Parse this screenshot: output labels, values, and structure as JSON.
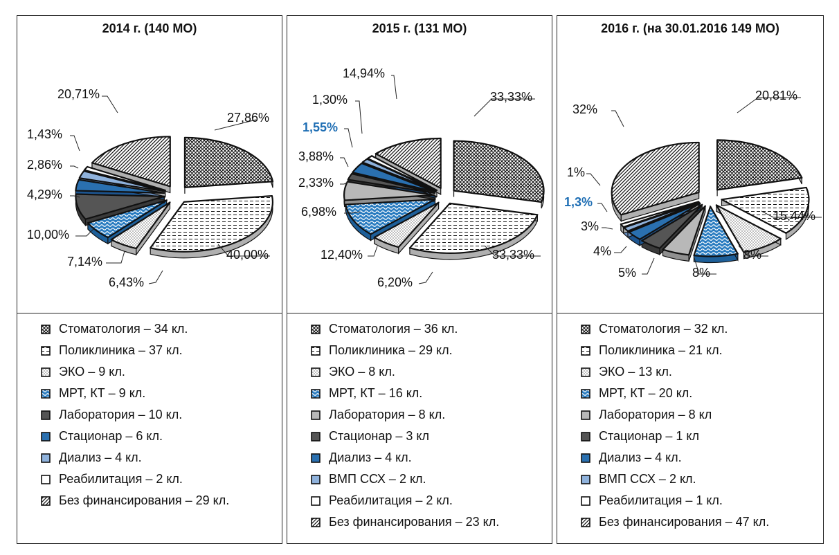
{
  "chart_data": [
    {
      "type": "pie",
      "title": "2014 г. (140 МО)",
      "slices": [
        {
          "name": "Стоматология",
          "value": 27.86,
          "label": "27,86%",
          "pattern": "cross",
          "legend": "Стоматология – 34 кл."
        },
        {
          "name": "Поликлиника",
          "value": 40.0,
          "label": "40,00%",
          "pattern": "dash",
          "legend": "Поликлиника – 37 кл."
        },
        {
          "name": "ЭКО",
          "value": 6.43,
          "label": "6,43%",
          "pattern": "dots",
          "legend": "ЭКО – 9 кл."
        },
        {
          "name": "МРТ, КТ",
          "value": 7.14,
          "label": "7,14%",
          "pattern": "wave",
          "legend": "МРТ, КТ – 9 кл."
        },
        {
          "name": "Лаборатория",
          "value": 10.0,
          "label": "10,00%",
          "pattern": "dark",
          "legend": "Лаборатория – 10 кл."
        },
        {
          "name": "Стационар",
          "value": 4.29,
          "label": "4,29%",
          "pattern": "blue",
          "legend": "Стационар – 6 кл."
        },
        {
          "name": "Диализ",
          "value": 2.86,
          "label": "2,86%",
          "pattern": "lightblue",
          "legend": "Диализ – 4 кл."
        },
        {
          "name": "Реабилитация",
          "value": 1.43,
          "label": "1,43%",
          "pattern": "white",
          "legend": "Реабилитация – 2 кл."
        },
        {
          "name": "Без финансирования",
          "value": 20.71,
          "label": "20,71%",
          "pattern": "diag",
          "legend": "Без финансирования – 29 кл."
        }
      ]
    },
    {
      "type": "pie",
      "title": "2015 г. (131 МО)",
      "slices": [
        {
          "name": "Стоматология",
          "value": 33.33,
          "label": "33,33%",
          "pattern": "cross",
          "legend": "Стоматология – 36 кл."
        },
        {
          "name": "Поликлиника",
          "value": 33.33,
          "label": "33,33%",
          "pattern": "dash",
          "legend": "Поликлиника – 29 кл."
        },
        {
          "name": "ЭКО",
          "value": 6.2,
          "label": "6,20%",
          "pattern": "dots",
          "legend": "ЭКО – 8 кл."
        },
        {
          "name": "МРТ, КТ",
          "value": 12.4,
          "label": "12,40%",
          "pattern": "wave",
          "legend": "МРТ, КТ – 16 кл."
        },
        {
          "name": "Лаборатория",
          "value": 6.98,
          "label": "6,98%",
          "pattern": "lightgray",
          "legend": "Лаборатория – 8 кл."
        },
        {
          "name": "Стационар",
          "value": 2.33,
          "label": "2,33%",
          "pattern": "dark",
          "legend": "Стационар – 3 кл"
        },
        {
          "name": "Диализ",
          "value": 3.88,
          "label": "3,88%",
          "pattern": "blue",
          "legend": "Диализ – 4 кл."
        },
        {
          "name": "ВМП ССХ",
          "value": 1.55,
          "label": "1,55%",
          "pattern": "lightblue",
          "legend": "ВМП ССХ – 2 кл.",
          "highlight": true
        },
        {
          "name": "Реабилитация",
          "value": 1.3,
          "label": "1,30%",
          "pattern": "white",
          "legend": "Реабилитация – 2 кл."
        },
        {
          "name": "Без финансирования",
          "value": 14.94,
          "label": "14,94%",
          "pattern": "diag",
          "legend": "Без финансирования – 23 кл."
        }
      ]
    },
    {
      "type": "pie",
      "title": "2016 г. (на 30.01.2016 149 МО)",
      "slices": [
        {
          "name": "Стоматология",
          "value": 20.81,
          "label": "20,81%",
          "pattern": "cross",
          "legend": "Стоматология – 32 кл."
        },
        {
          "name": "Поликлиника",
          "value": 15.44,
          "label": "15,44%",
          "pattern": "dash",
          "legend": "Поликлиника – 21 кл."
        },
        {
          "name": "ЭКО",
          "value": 8,
          "label": "8%",
          "pattern": "dots",
          "legend": "ЭКО – 13 кл."
        },
        {
          "name": "МРТ, КТ",
          "value": 8,
          "label": "8%",
          "pattern": "wave",
          "legend": "МРТ, КТ – 20 кл."
        },
        {
          "name": "Лаборатория",
          "value": 5,
          "label": "5%",
          "pattern": "lightgray",
          "legend": "Лаборатория – 8 кл"
        },
        {
          "name": "Стационар",
          "value": 4,
          "label": "4%",
          "pattern": "dark",
          "legend": "Стационар – 1 кл"
        },
        {
          "name": "Диализ",
          "value": 3,
          "label": "3%",
          "pattern": "blue",
          "legend": "Диализ – 4 кл."
        },
        {
          "name": "ВМП ССХ",
          "value": 1.3,
          "label": "1,3%",
          "pattern": "lightblue",
          "legend": "ВМП ССХ – 2 кл.",
          "highlight": true
        },
        {
          "name": "Реабилитация",
          "value": 1,
          "label": "1%",
          "pattern": "white",
          "legend": "Реабилитация – 1 кл."
        },
        {
          "name": "Без финансирования",
          "value": 32,
          "label": "32%",
          "pattern": "diag",
          "legend": "Без финансирования – 47 кл."
        }
      ]
    }
  ],
  "colors": {
    "highlight_label": "#1e6eb4",
    "blue": "#2a70b0",
    "lightblue": "#8fb2dc",
    "dark": "#555555",
    "lightgray": "#b8b8b8",
    "wave": "#2a7cc0"
  }
}
